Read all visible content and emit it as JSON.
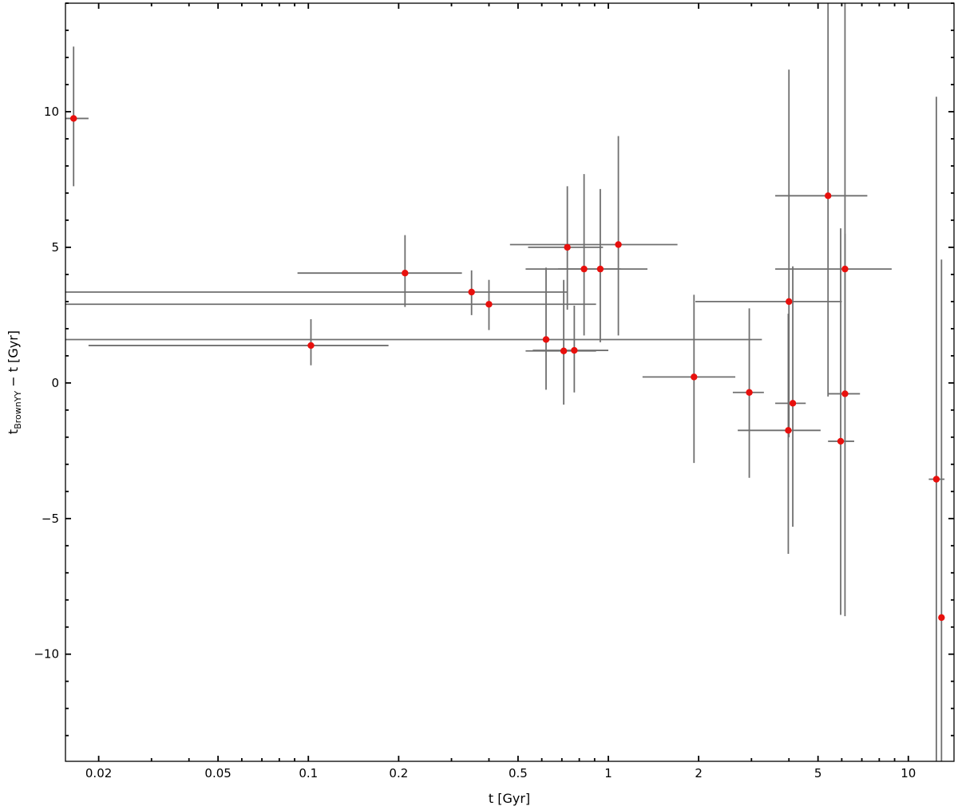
{
  "chart_data": {
    "type": "scatter",
    "title": "",
    "xlabel": "t  [Gyr]",
    "ylabel": {
      "main": "t",
      "sub": "BrownYY",
      "rest": " − t  [Gyr]"
    },
    "xscale": "log",
    "xlim": [
      0.0155,
      14.2
    ],
    "ylim": [
      -13.95,
      14.0
    ],
    "grid": false,
    "legend": "none",
    "marker_color": "#e8100d",
    "errorbar_color": "#6f6f6f",
    "x_ticks": [
      {
        "value": 0.02,
        "label": "0.02"
      },
      {
        "value": 0.05,
        "label": "0.05"
      },
      {
        "value": 0.1,
        "label": "0.1"
      },
      {
        "value": 0.2,
        "label": "0.2"
      },
      {
        "value": 0.5,
        "label": "0.5"
      },
      {
        "value": 1,
        "label": "1"
      },
      {
        "value": 2,
        "label": "2"
      },
      {
        "value": 5,
        "label": "5"
      },
      {
        "value": 10,
        "label": "10"
      }
    ],
    "y_ticks": [
      {
        "value": 10,
        "label": "10"
      },
      {
        "value": 5,
        "label": "5"
      },
      {
        "value": 0,
        "label": "0"
      },
      {
        "value": -5,
        "label": "−5"
      },
      {
        "value": -10,
        "label": "−10"
      }
    ],
    "points": [
      {
        "x": 0.0165,
        "y": 9.75,
        "xlo": 0.0155,
        "xhi": 0.0185,
        "ylo": 7.25,
        "yhi": 12.4
      },
      {
        "x": 0.102,
        "y": 1.38,
        "xlo": 0.0185,
        "xhi": 0.185,
        "ylo": 0.65,
        "yhi": 2.35
      },
      {
        "x": 0.21,
        "y": 4.05,
        "xlo": 0.092,
        "xhi": 0.325,
        "ylo": 2.8,
        "yhi": 5.45
      },
      {
        "x": 0.35,
        "y": 3.35,
        "xlo": 0.0155,
        "xhi": 0.73,
        "ylo": 2.5,
        "yhi": 4.15
      },
      {
        "x": 0.4,
        "y": 2.9,
        "xlo": 0.0155,
        "xhi": 0.91,
        "ylo": 1.95,
        "yhi": 3.8
      },
      {
        "x": 0.62,
        "y": 1.6,
        "xlo": 0.0155,
        "xhi": 3.25,
        "ylo": -0.25,
        "yhi": 4.25
      },
      {
        "x": 0.71,
        "y": 1.18,
        "xlo": 0.53,
        "xhi": 0.91,
        "ylo": -0.8,
        "yhi": 3.8
      },
      {
        "x": 0.73,
        "y": 5.0,
        "xlo": 0.54,
        "xhi": 0.96,
        "ylo": 2.7,
        "yhi": 7.25
      },
      {
        "x": 0.77,
        "y": 1.2,
        "xlo": 0.56,
        "xhi": 1.0,
        "ylo": -0.35,
        "yhi": 2.85
      },
      {
        "x": 0.83,
        "y": 4.2,
        "xlo": 0.53,
        "xhi": 1.35,
        "ylo": 1.75,
        "yhi": 7.7
      },
      {
        "x": 0.94,
        "y": 4.2,
        "xlo": 0.68,
        "xhi": 1.1,
        "ylo": 1.5,
        "yhi": 7.15
      },
      {
        "x": 1.08,
        "y": 5.1,
        "xlo": 0.47,
        "xhi": 1.7,
        "ylo": 1.75,
        "yhi": 9.1
      },
      {
        "x": 1.93,
        "y": 0.22,
        "xlo": 1.3,
        "xhi": 2.65,
        "ylo": -2.95,
        "yhi": 3.25
      },
      {
        "x": 2.95,
        "y": -0.35,
        "xlo": 2.6,
        "xhi": 3.3,
        "ylo": -3.5,
        "yhi": 2.75
      },
      {
        "x": 3.98,
        "y": -1.75,
        "xlo": 2.7,
        "xhi": 5.1,
        "ylo": -6.3,
        "yhi": 2.55
      },
      {
        "x": 4.0,
        "y": 3.0,
        "xlo": 1.95,
        "xhi": 6.0,
        "ylo": -2.0,
        "yhi": 11.55
      },
      {
        "x": 4.12,
        "y": -0.75,
        "xlo": 3.6,
        "xhi": 4.55,
        "ylo": -5.3,
        "yhi": 4.3
      },
      {
        "x": 5.4,
        "y": 6.9,
        "xlo": 3.6,
        "xhi": 7.3,
        "ylo": -0.5,
        "yhi": 14.0
      },
      {
        "x": 5.95,
        "y": -2.15,
        "xlo": 5.4,
        "xhi": 6.6,
        "ylo": -8.55,
        "yhi": 5.7
      },
      {
        "x": 6.15,
        "y": -0.4,
        "xlo": 5.4,
        "xhi": 6.9,
        "ylo": -8.6,
        "yhi": 14.0
      },
      {
        "x": 6.15,
        "y": 4.2,
        "xlo": 3.6,
        "xhi": 8.8,
        "ylo": -0.5,
        "yhi": 5.5
      },
      {
        "x": 12.4,
        "y": -3.55,
        "xlo": 11.7,
        "xhi": 13.2,
        "ylo": -13.95,
        "yhi": 10.55
      },
      {
        "x": 12.9,
        "y": -8.65,
        "xlo": 12.7,
        "xhi": 13.05,
        "ylo": -13.95,
        "yhi": 4.55
      }
    ]
  }
}
